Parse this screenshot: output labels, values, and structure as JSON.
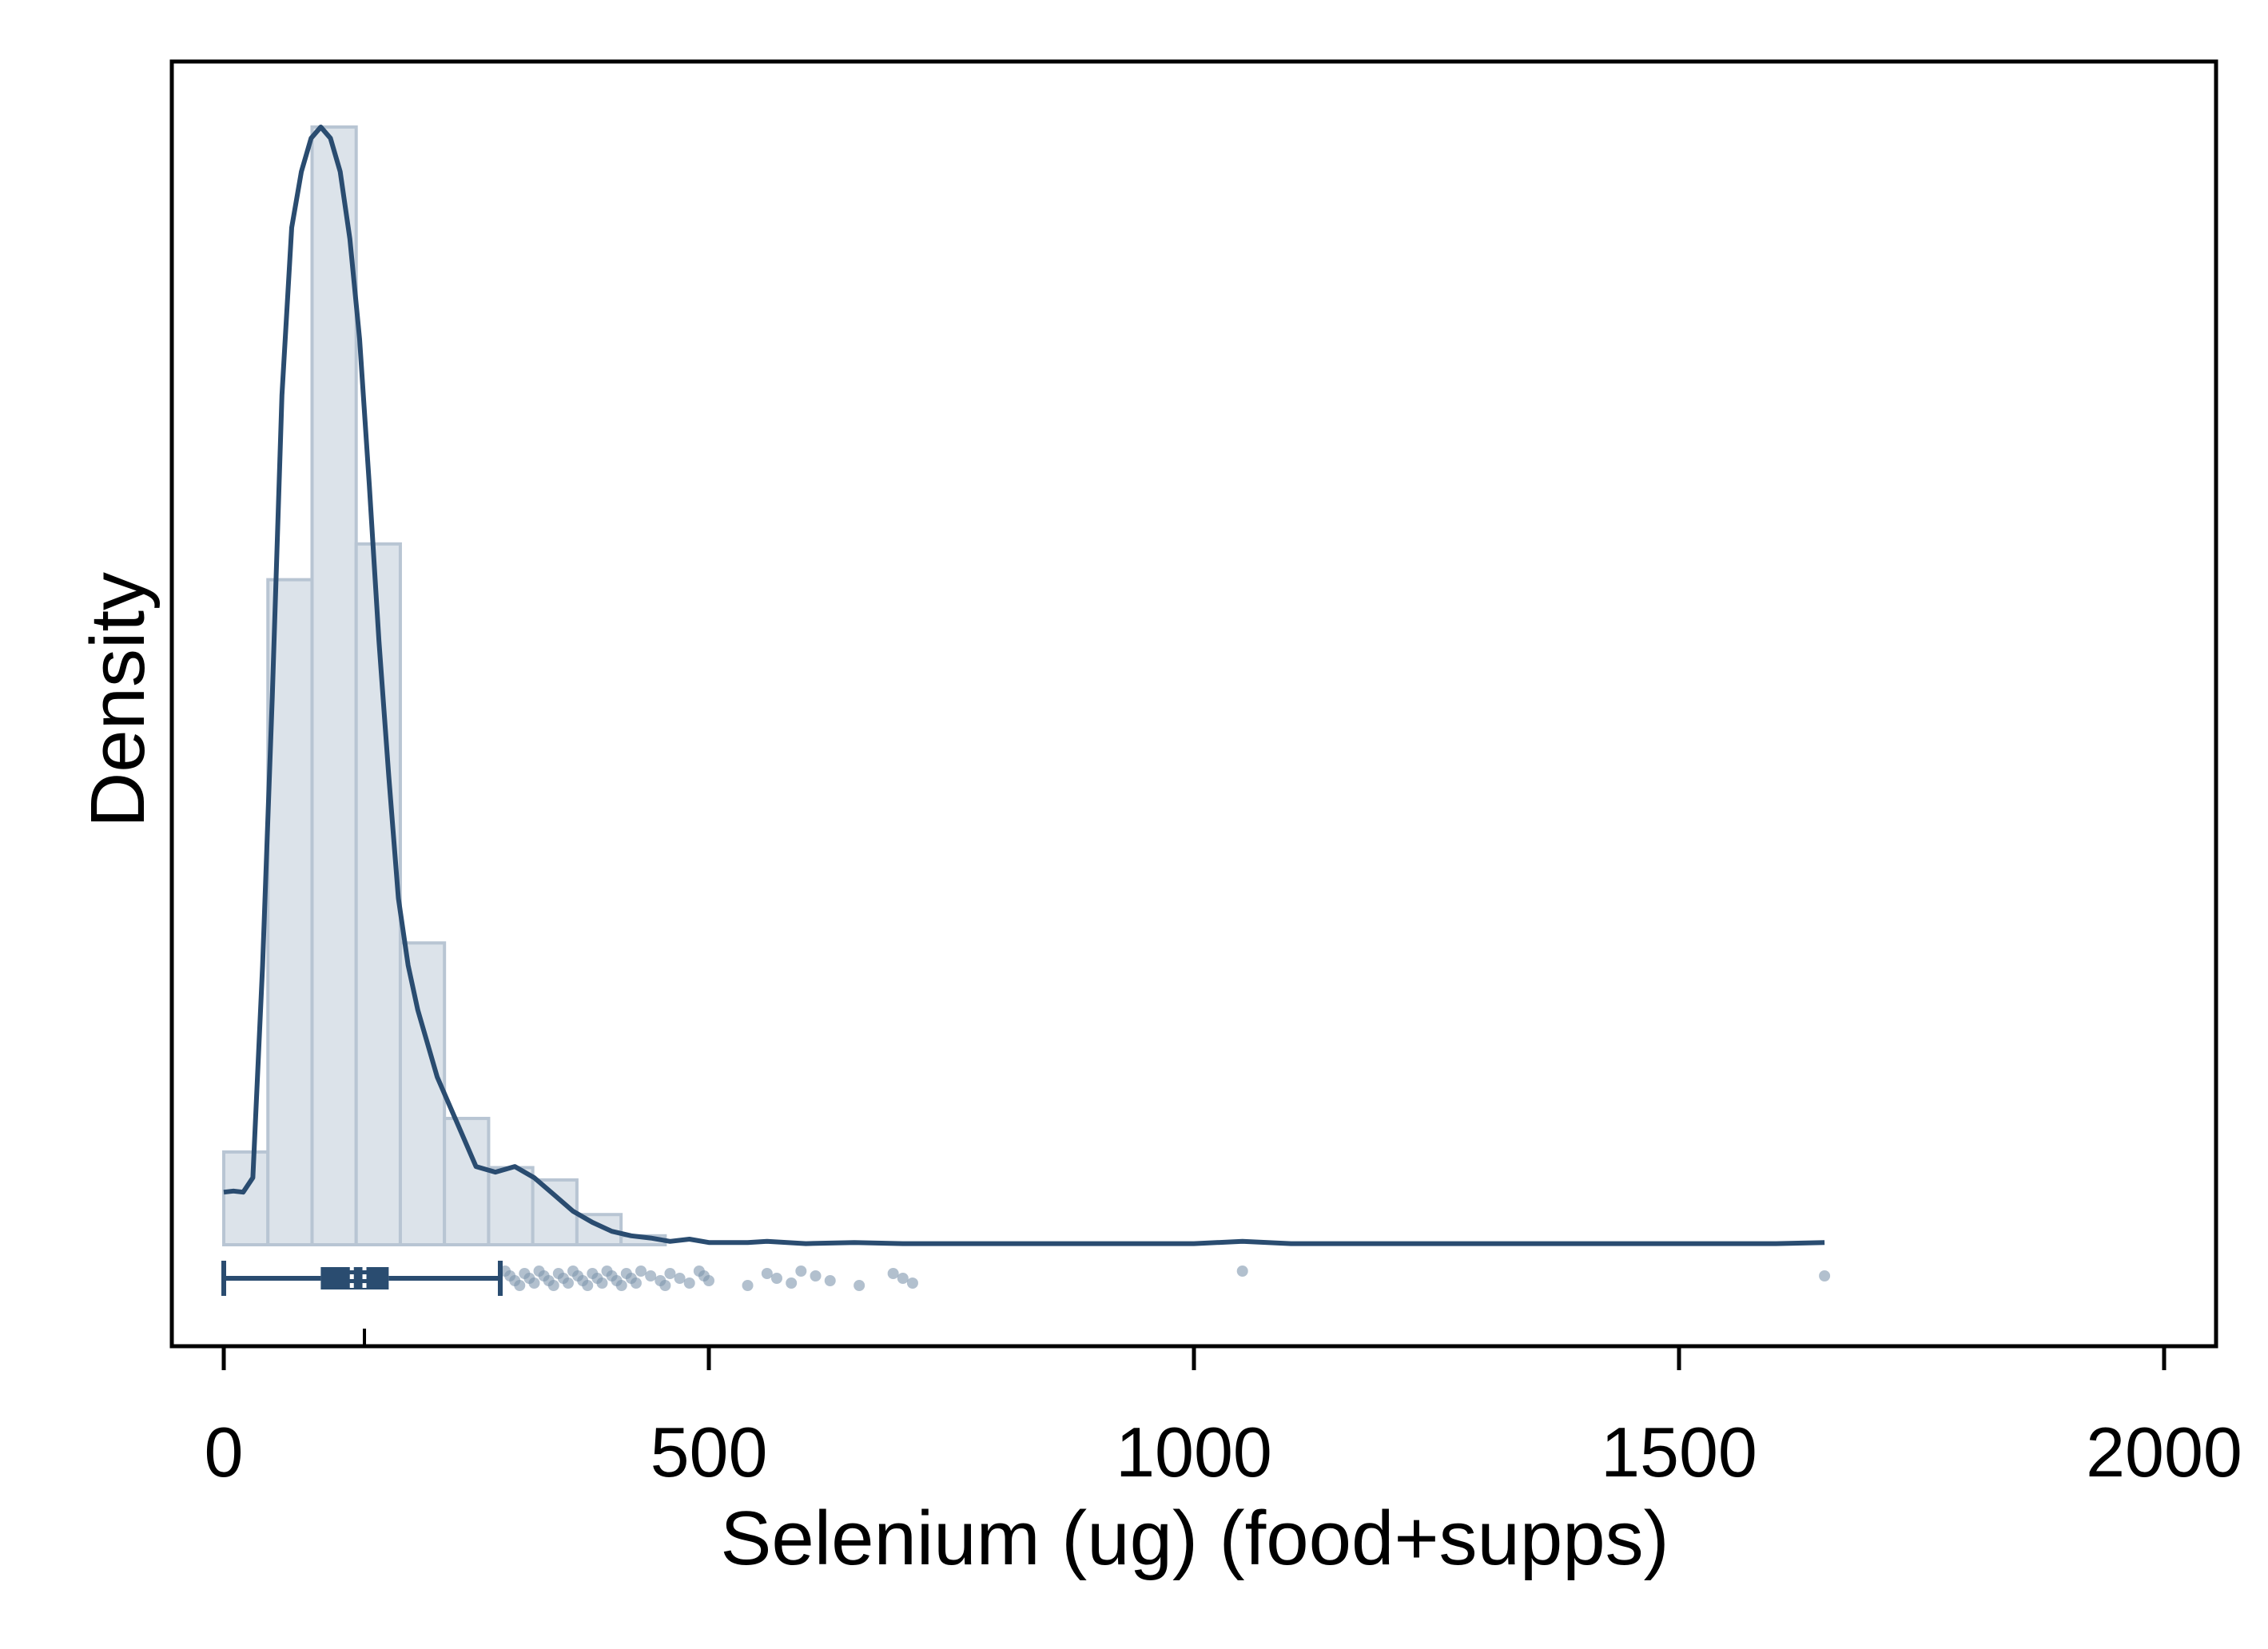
{
  "chart_data": {
    "type": "histogram",
    "xlabel": "Selenium (ug) (food+supps)",
    "ylabel": "Density",
    "xlim": [
      -50,
      2050
    ],
    "x_ticks": [
      0,
      500,
      1000,
      1500,
      2000
    ],
    "x_tick_labels": [
      "0",
      "500",
      "1000",
      "1500",
      "2000"
    ],
    "y_axis_ticks_shown": false,
    "grid": false,
    "legend": "none",
    "colors": {
      "bar_fill": "#dce3ea",
      "bar_stroke": "#b8c5d3",
      "line": "#2a4c70",
      "points": "#7f96ae",
      "axes": "#000000"
    },
    "histogram": {
      "bin_width": 45.5,
      "bin_start": 0,
      "densities": [
        0.00083,
        0.00595,
        0.01,
        0.00627,
        0.0027,
        0.00113,
        0.00069,
        0.00058,
        0.00027,
        8e-05
      ]
    },
    "density_curve": {
      "x": [
        0,
        10,
        20,
        30,
        40,
        50,
        60,
        70,
        80,
        90,
        100,
        110,
        120,
        130,
        140,
        150,
        160,
        170,
        180,
        190,
        200,
        220,
        240,
        260,
        280,
        300,
        320,
        340,
        360,
        380,
        400,
        420,
        440,
        460,
        480,
        500,
        520,
        540,
        560,
        600,
        650,
        700,
        800,
        900,
        1000,
        1050,
        1100,
        1200,
        1300,
        1400,
        1500,
        1600,
        1650
      ],
      "y": [
        0.00047,
        0.00048,
        0.00047,
        0.0006,
        0.0025,
        0.0049,
        0.0076,
        0.0091,
        0.0096,
        0.0099,
        0.01,
        0.0099,
        0.0096,
        0.009,
        0.0081,
        0.0068,
        0.0054,
        0.0042,
        0.0031,
        0.0025,
        0.0021,
        0.0015,
        0.0011,
        0.0007,
        0.00065,
        0.0007,
        0.0006,
        0.00045,
        0.0003,
        0.0002,
        0.00012,
        8e-05,
        6e-05,
        3e-05,
        5e-05,
        2e-05,
        2e-05,
        2e-05,
        3e-05,
        1e-05,
        2e-05,
        1e-05,
        1e-05,
        1e-05,
        1e-05,
        3e-05,
        1e-05,
        1e-05,
        1e-05,
        1e-05,
        1e-05,
        1e-05,
        2e-05
      ],
      "y_max": 0.01015
    },
    "boxplot": {
      "whisker_low": 0,
      "q1": 100,
      "median": 132,
      "mean": 145,
      "q3": 170,
      "whisker_high": 285
    },
    "outliers": [
      290,
      295,
      300,
      305,
      310,
      315,
      320,
      325,
      330,
      335,
      340,
      345,
      350,
      355,
      360,
      365,
      370,
      375,
      380,
      385,
      390,
      395,
      400,
      405,
      410,
      415,
      420,
      425,
      430,
      440,
      450,
      455,
      460,
      470,
      480,
      490,
      495,
      500,
      540,
      560,
      570,
      585,
      595,
      610,
      625,
      655,
      690,
      700,
      710,
      1050,
      1650
    ]
  }
}
